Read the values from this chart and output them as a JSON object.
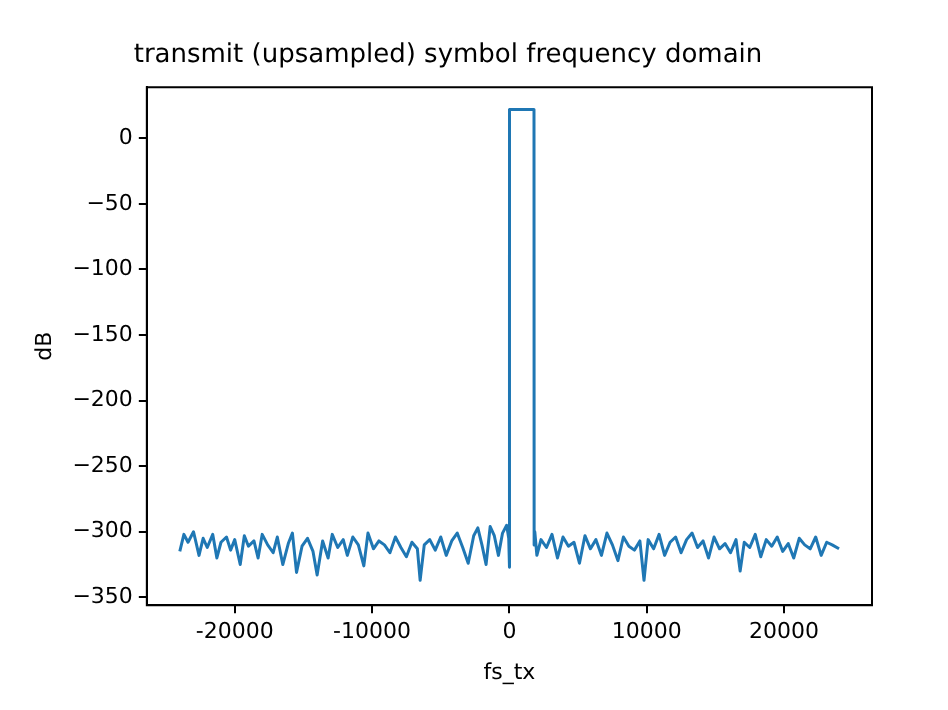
{
  "chart_data": {
    "type": "line",
    "title": "transmit (upsampled) symbol frequency domain",
    "xlabel": "fs_tx",
    "ylabel": "dB",
    "x": [
      -24000,
      -23700,
      -23400,
      -23000,
      -22600,
      -22300,
      -22000,
      -21600,
      -21300,
      -21000,
      -20600,
      -20300,
      -20000,
      -19600,
      -19300,
      -19000,
      -18600,
      -18300,
      -18000,
      -17600,
      -17200,
      -16900,
      -16500,
      -16100,
      -15800,
      -15500,
      -15100,
      -14700,
      -14300,
      -14000,
      -13600,
      -13200,
      -12900,
      -12500,
      -12100,
      -11800,
      -11400,
      -11000,
      -10600,
      -10300,
      -9900,
      -9500,
      -9100,
      -8700,
      -8300,
      -7900,
      -7500,
      -7100,
      -6700,
      -6500,
      -6200,
      -5800,
      -5400,
      -5000,
      -4600,
      -4200,
      -3800,
      -3400,
      -3000,
      -2600,
      -2300,
      -2000,
      -1700,
      -1400,
      -1100,
      -800,
      -500,
      -200,
      -50,
      0,
      10,
      1790,
      1800,
      1850,
      2000,
      2300,
      2700,
      3100,
      3500,
      3900,
      4300,
      4700,
      5100,
      5500,
      5900,
      6300,
      6700,
      7100,
      7500,
      7900,
      8300,
      8700,
      9100,
      9500,
      9800,
      10100,
      10500,
      10900,
      11300,
      11700,
      12100,
      12500,
      12900,
      13300,
      13700,
      14100,
      14500,
      14900,
      15300,
      15700,
      16100,
      16500,
      16800,
      17100,
      17500,
      17900,
      18300,
      18700,
      19100,
      19500,
      19900,
      20300,
      20700,
      21100,
      21500,
      21900,
      22300,
      22700,
      23100,
      23500,
      24000
    ],
    "series": [
      {
        "color": "#1f77b4",
        "values": [
          -315,
          -302,
          -308,
          -300,
          -318,
          -305,
          -312,
          -302,
          -320,
          -308,
          -304,
          -314,
          -306,
          -325,
          -303,
          -311,
          -307,
          -320,
          -302,
          -310,
          -316,
          -304,
          -325,
          -309,
          -301,
          -331,
          -311,
          -305,
          -315,
          -333,
          -307,
          -320,
          -302,
          -312,
          -306,
          -318,
          -304,
          -310,
          -326,
          -301,
          -313,
          -307,
          -310,
          -316,
          -304,
          -312,
          -319,
          -308,
          -313,
          -337,
          -310,
          -306,
          -314,
          -304,
          -318,
          -307,
          -301,
          -312,
          -324,
          -303,
          -297,
          -310,
          -325,
          -296,
          -303,
          -318,
          -301,
          -295,
          -305,
          -327,
          22,
          22,
          -310,
          -300,
          -318,
          -306,
          -312,
          -302,
          -320,
          -304,
          -311,
          -308,
          -324,
          -303,
          -313,
          -306,
          -318,
          -301,
          -310,
          -322,
          -304,
          -311,
          -314,
          -307,
          -337,
          -306,
          -313,
          -302,
          -318,
          -308,
          -304,
          -316,
          -306,
          -301,
          -312,
          -307,
          -320,
          -304,
          -313,
          -309,
          -316,
          -306,
          -330,
          -308,
          -312,
          -302,
          -319,
          -306,
          -311,
          -304,
          -315,
          -309,
          -320,
          -305,
          -310,
          -313,
          -304,
          -318,
          -308,
          -310,
          -313
        ]
      }
    ],
    "xlim": [
      -26400,
      26400
    ],
    "ylim": [
      -356,
      39
    ],
    "xticks": [
      -20000,
      -10000,
      0,
      10000,
      20000
    ],
    "yticks": [
      -350,
      -300,
      -250,
      -200,
      -150,
      -100,
      -50,
      0
    ],
    "grid": false,
    "legend": false,
    "marker": "none",
    "line_style": "solid"
  }
}
